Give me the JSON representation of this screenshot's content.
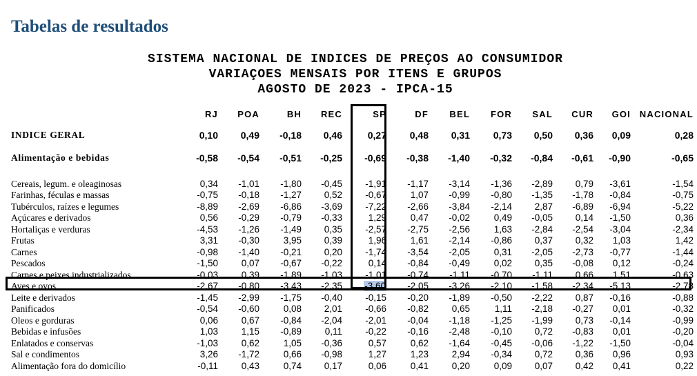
{
  "heading": "Tabelas de resultados",
  "title_lines": [
    "SISTEMA NACIONAL DE INDICES DE PREÇOS AO CONSUMIDOR",
    "VARIAÇOES MENSAIS POR ITENS E GRUPOS",
    "AGOSTO DE 2023 - IPCA-15"
  ],
  "table": {
    "columns": [
      "RJ",
      "POA",
      "BH",
      "REC",
      "SP",
      "DF",
      "BEL",
      "FOR",
      "SAL",
      "CUR",
      "GOI",
      "NACIONAL"
    ],
    "summary_rows": [
      {
        "label": "INDICE GERAL",
        "values": [
          "0,10",
          "0,49",
          "-0,18",
          "0,46",
          "0,27",
          "0,48",
          "0,31",
          "0,73",
          "0,50",
          "0,36",
          "0,09",
          "0,28"
        ]
      },
      {
        "label": "Alimentação e bebidas",
        "values": [
          "-0,58",
          "-0,54",
          "-0,51",
          "-0,25",
          "-0,69",
          "-0,38",
          "-1,40",
          "-0,32",
          "-0,84",
          "-0,61",
          "-0,90",
          "-0,65"
        ]
      }
    ],
    "item_rows": [
      {
        "label": "Cereais, legum. e oleaginosas",
        "values": [
          "0,34",
          "-1,01",
          "-1,80",
          "-0,45",
          "-1,91",
          "-1,17",
          "-3,14",
          "-1,36",
          "-2,89",
          "0,79",
          "-3,61",
          "-1,54"
        ]
      },
      {
        "label": "Farinhas, féculas e massas",
        "values": [
          "-0,75",
          "-0,18",
          "-1,27",
          "0,52",
          "-0,67",
          "1,07",
          "-0,99",
          "-0,80",
          "-1,35",
          "-1,78",
          "-0,84",
          "-0,75"
        ]
      },
      {
        "label": "Tubérculos, raízes e legumes",
        "values": [
          "-8,89",
          "-2,69",
          "-6,86",
          "-3,69",
          "-7,22",
          "-2,66",
          "-3,84",
          "-2,14",
          "2,87",
          "-6,89",
          "-6,94",
          "-5,22"
        ]
      },
      {
        "label": "Açúcares e derivados",
        "values": [
          "0,56",
          "-0,29",
          "-0,79",
          "-0,33",
          "1,29",
          "0,47",
          "-0,02",
          "0,49",
          "-0,05",
          "0,14",
          "-1,50",
          "0,36"
        ]
      },
      {
        "label": "Hortaliças e verduras",
        "values": [
          "-4,53",
          "-1,26",
          "-1,49",
          "0,35",
          "-2,57",
          "-2,75",
          "-2,56",
          "1,63",
          "-2,84",
          "-2,54",
          "-3,04",
          "-2,34"
        ]
      },
      {
        "label": "Frutas",
        "values": [
          "3,31",
          "-0,30",
          "3,95",
          "0,39",
          "1,96",
          "1,61",
          "-2,14",
          "-0,86",
          "0,37",
          "0,32",
          "1,03",
          "1,42"
        ]
      },
      {
        "label": "Carnes",
        "values": [
          "-0,98",
          "-1,40",
          "-0,21",
          "0,20",
          "-1,74",
          "-3,54",
          "-2,05",
          "0,31",
          "-2,05",
          "-2,73",
          "-0,77",
          "-1,44"
        ]
      },
      {
        "label": "Pescados",
        "values": [
          "-1,50",
          "0,07",
          "-0,67",
          "-0,22",
          "0,14",
          "-0,84",
          "-0,49",
          "0,02",
          "0,35",
          "-0,08",
          "0,12",
          "-0,24"
        ]
      },
      {
        "label": "Carnes e peixes industrializados",
        "values": [
          "-0,03",
          "0,39",
          "-1,89",
          "-1,03",
          "-1,01",
          "-0,74",
          "-1,11",
          "-0,70",
          "-1,11",
          "0,66",
          "1,51",
          "-0,63"
        ]
      },
      {
        "label": "Aves e ovos",
        "values": [
          "-2,67",
          "-0,80",
          "-3,43",
          "-2,35",
          "-3,60",
          "-2,05",
          "-3,26",
          "-2,10",
          "-1,58",
          "-2,34",
          "-5,13",
          "-2,78"
        ]
      },
      {
        "label": "Leite e derivados",
        "values": [
          "-1,45",
          "-2,99",
          "-1,75",
          "-0,40",
          "-0,15",
          "-0,20",
          "-1,89",
          "-0,50",
          "-2,22",
          "0,87",
          "-0,16",
          "-0,88"
        ]
      },
      {
        "label": "Panificados",
        "values": [
          "-0,54",
          "-0,60",
          "0,08",
          "2,01",
          "-0,66",
          "-0,82",
          "0,65",
          "1,11",
          "-2,18",
          "-0,27",
          "0,01",
          "-0,32"
        ]
      },
      {
        "label": "Oleos e gorduras",
        "values": [
          "0,06",
          "0,67",
          "-0,84",
          "-2,04",
          "-2,01",
          "-0,04",
          "-1,18",
          "-1,25",
          "-1,99",
          "0,73",
          "-0,14",
          "-0,99"
        ]
      },
      {
        "label": "Bebidas e infusões",
        "values": [
          "1,03",
          "1,15",
          "-0,89",
          "0,11",
          "-0,22",
          "-0,16",
          "-2,48",
          "-0,10",
          "0,72",
          "-0,83",
          "0,01",
          "-0,20"
        ]
      },
      {
        "label": "Enlatados e conservas",
        "values": [
          "-1,03",
          "0,62",
          "1,05",
          "-0,36",
          "0,57",
          "0,62",
          "-1,64",
          "-0,45",
          "-0,06",
          "-1,22",
          "-1,50",
          "-0,04"
        ]
      },
      {
        "label": "Sal e condimentos",
        "values": [
          "3,26",
          "-1,72",
          "0,66",
          "-0,98",
          "1,27",
          "1,23",
          "2,94",
          "-0,34",
          "0,72",
          "0,36",
          "0,96",
          "0,93"
        ]
      },
      {
        "label": "Alimentação fora do domicílio",
        "values": [
          "-0,11",
          "0,43",
          "0,74",
          "0,17",
          "0,06",
          "0,41",
          "0,20",
          "0,09",
          "0,07",
          "0,42",
          "0,41",
          "0,22"
        ]
      }
    ],
    "highlighted": {
      "column": "SP",
      "row": "Aves e ovos",
      "cell_color": "#b4c7e7"
    }
  },
  "colors": {
    "heading": "#1f4e79",
    "text": "#000000",
    "highlight": "#b4c7e7"
  }
}
